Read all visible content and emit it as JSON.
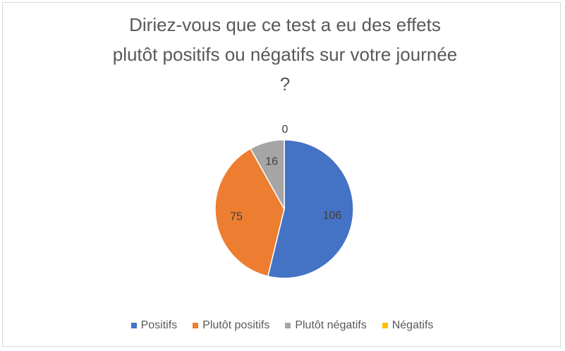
{
  "chart_data": {
    "type": "pie",
    "title": "Diriez-vous que ce test a eu des effets plutôt positifs ou négatifs sur votre journée ?",
    "title_lines": [
      "Diriez-vous que ce test a eu des effets",
      "plutôt positifs ou négatifs sur votre journée",
      "?"
    ],
    "categories": [
      "Positifs",
      "Plutôt positifs",
      "Plutôt négatifs",
      "Négatifs"
    ],
    "values": [
      106,
      75,
      16,
      0
    ],
    "colors": [
      "#4472c4",
      "#ed7d31",
      "#a5a5a5",
      "#ffc000"
    ],
    "legend_position": "bottom"
  }
}
